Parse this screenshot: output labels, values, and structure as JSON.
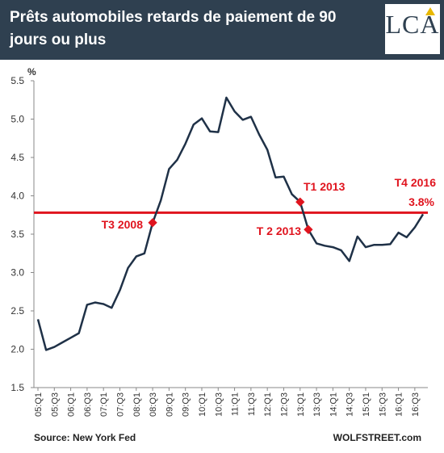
{
  "header": {
    "title": "Prêts automobiles retards de paiement de 90 jours ou plus",
    "logo": "LCA"
  },
  "chart_data": {
    "type": "line",
    "unit_label": "%",
    "y_ticks": [
      "5.5",
      "5.0",
      "4.5",
      "4.0",
      "3.5",
      "3.0",
      "2.5",
      "2.0",
      "1.5"
    ],
    "ylim": [
      1.5,
      5.5
    ],
    "x_ticks": [
      "05:Q1",
      "05:Q3",
      "06:Q1",
      "06:Q3",
      "07:Q1",
      "07:Q3",
      "08:Q1",
      "08:Q3",
      "09:Q1",
      "09:Q3",
      "10:Q1",
      "10:Q3",
      "11:Q1",
      "11:Q3",
      "12:Q1",
      "12:Q3",
      "13:Q1",
      "13:Q3",
      "14:Q1",
      "14:Q3",
      "15:Q1",
      "15:Q3",
      "16:Q1",
      "16:Q3"
    ],
    "series": [
      {
        "values": [
          2.39,
          1.99,
          2.03,
          2.09,
          2.15,
          2.21,
          2.58,
          2.61,
          2.59,
          2.54,
          2.77,
          3.06,
          3.21,
          3.25,
          3.65,
          3.94,
          4.35,
          4.47,
          4.68,
          4.93,
          5.01,
          4.84,
          4.83,
          5.28,
          5.1,
          4.99,
          5.03,
          4.8,
          4.6,
          4.24,
          4.25,
          4.02,
          3.92,
          3.56,
          3.38,
          3.35,
          3.33,
          3.29,
          3.15,
          3.47,
          3.33,
          3.36,
          3.36,
          3.37,
          3.52,
          3.46,
          3.59,
          3.76
        ],
        "color": "#1f3147"
      }
    ],
    "reference_line": {
      "value": 3.78,
      "color": "#e0141e"
    },
    "annotations": [
      {
        "label": "T3 2008",
        "index": 14
      },
      {
        "label": "T1 2013",
        "index": 32
      },
      {
        "label": "T 2 2013",
        "index": 33
      },
      {
        "label": "T4 2016",
        "index": 47
      },
      {
        "label": "3.8%",
        "index": 47
      }
    ],
    "grid": false
  },
  "footer": {
    "source": "Source: New  York Fed",
    "credit": "WOLFSTREET.com"
  }
}
